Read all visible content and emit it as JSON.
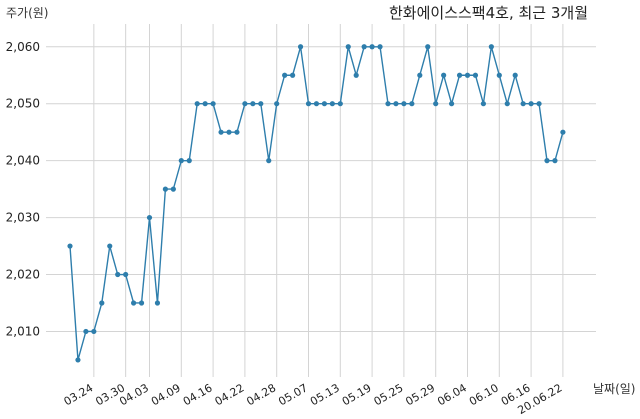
{
  "chart_data": {
    "type": "line",
    "title": "한화에이스스팩4호, 최근 3개월",
    "ylabel": "주가(원)",
    "xlabel": "날짜(일)",
    "ylim": [
      2002,
      2064
    ],
    "yticks": [
      2010,
      2020,
      2030,
      2040,
      2050,
      2060
    ],
    "ytick_labels": [
      "2,010",
      "2,020",
      "2,030",
      "2,040",
      "2,050",
      "2,060"
    ],
    "xtick_labels": [
      "03.24",
      "03.30",
      "04.03",
      "04.09",
      "04.16",
      "04.22",
      "04.28",
      "05.07",
      "05.13",
      "05.19",
      "05.25",
      "05.29",
      "06.04",
      "06.10",
      "06.16",
      "20.06.22"
    ],
    "xtick_index": [
      3,
      7,
      10,
      14,
      18,
      22,
      26,
      30,
      34,
      38,
      42,
      46,
      50,
      54,
      58,
      62
    ],
    "grid": true,
    "color": "#2e7eac",
    "values": [
      2025,
      2005,
      2010,
      2010,
      2015,
      2025,
      2020,
      2020,
      2015,
      2015,
      2030,
      2015,
      2035,
      2035,
      2040,
      2040,
      2050,
      2050,
      2050,
      2045,
      2045,
      2045,
      2050,
      2050,
      2050,
      2040,
      2050,
      2055,
      2055,
      2060,
      2050,
      2050,
      2050,
      2050,
      2050,
      2060,
      2055,
      2060,
      2060,
      2060,
      2050,
      2050,
      2050,
      2050,
      2055,
      2060,
      2050,
      2055,
      2050,
      2055,
      2055,
      2055,
      2050,
      2060,
      2055,
      2050,
      2055,
      2050,
      2050,
      2050,
      2040,
      2040,
      2045
    ]
  }
}
